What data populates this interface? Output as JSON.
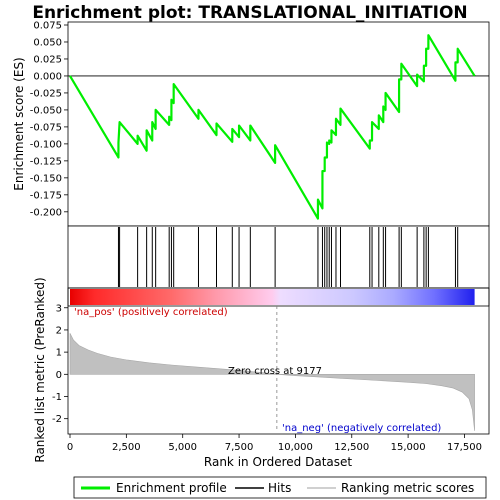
{
  "chart_data": {
    "type": "line",
    "title": "Enrichment plot: TRANSLATIONAL_INITIATION",
    "xlabel": "Rank in Ordered Dataset",
    "ylabel_top": "Enrichment score (ES)",
    "ylabel_bottom": "Ranked list metric (PreRanked)",
    "x_ticks": [
      0,
      2500,
      5000,
      7500,
      10000,
      12500,
      15000,
      17500
    ],
    "x_tick_labels": [
      "0",
      "2,500",
      "5,000",
      "7,500",
      "10,000",
      "12,500",
      "15,000",
      "17,500"
    ],
    "xlim": [
      0,
      18500
    ],
    "es_ylim": [
      -0.215,
      0.075
    ],
    "es_y_ticks": [
      0.075,
      0.05,
      0.025,
      0.0,
      -0.025,
      -0.05,
      -0.075,
      -0.1,
      -0.125,
      -0.15,
      -0.175,
      -0.2
    ],
    "es_y_tick_labels": [
      "0.075",
      "0.050",
      "0.025",
      "0.000",
      "-0.025",
      "-0.050",
      "-0.075",
      "-0.100",
      "-0.125",
      "-0.150",
      "-0.175",
      "-0.200"
    ],
    "metric_ylim": [
      -2.6,
      3.8
    ],
    "metric_y_ticks": [
      3,
      2,
      1,
      0,
      -1,
      -2
    ],
    "metric_y_tick_labels": [
      "3",
      "2",
      "1",
      "0",
      "-1",
      "-2"
    ],
    "hits": [
      2150,
      2200,
      3000,
      3400,
      3650,
      3800,
      4400,
      4500,
      4600,
      5700,
      6500,
      7200,
      7500,
      8000,
      9100,
      11000,
      11200,
      11300,
      11400,
      11500,
      11600,
      11800,
      12000,
      13300,
      13400,
      13700,
      13900,
      14000,
      14600,
      14700,
      15400,
      15700,
      15800,
      15900,
      17100,
      17200
    ],
    "es_curve": [
      [
        0,
        0.0
      ],
      [
        2149,
        -0.12
      ],
      [
        2150,
        -0.098
      ],
      [
        2200,
        -0.068
      ],
      [
        2999,
        -0.1
      ],
      [
        3000,
        -0.088
      ],
      [
        3399,
        -0.11
      ],
      [
        3400,
        -0.08
      ],
      [
        3649,
        -0.095
      ],
      [
        3650,
        -0.068
      ],
      [
        3799,
        -0.078
      ],
      [
        3800,
        -0.05
      ],
      [
        4399,
        -0.072
      ],
      [
        4400,
        -0.06
      ],
      [
        4499,
        -0.065
      ],
      [
        4500,
        -0.035
      ],
      [
        4599,
        -0.04
      ],
      [
        4600,
        -0.012
      ],
      [
        5699,
        -0.063
      ],
      [
        5700,
        -0.05
      ],
      [
        6499,
        -0.087
      ],
      [
        6500,
        -0.07
      ],
      [
        7199,
        -0.097
      ],
      [
        7200,
        -0.078
      ],
      [
        7499,
        -0.09
      ],
      [
        7500,
        -0.073
      ],
      [
        7999,
        -0.095
      ],
      [
        8000,
        -0.073
      ],
      [
        9099,
        -0.128
      ],
      [
        9100,
        -0.102
      ],
      [
        10999,
        -0.21
      ],
      [
        11000,
        -0.182
      ],
      [
        11199,
        -0.195
      ],
      [
        11200,
        -0.14
      ],
      [
        11299,
        -0.14
      ],
      [
        11300,
        -0.12
      ],
      [
        11399,
        -0.12
      ],
      [
        11400,
        -0.098
      ],
      [
        11499,
        -0.1
      ],
      [
        11500,
        -0.095
      ],
      [
        11599,
        -0.098
      ],
      [
        11600,
        -0.08
      ],
      [
        11799,
        -0.087
      ],
      [
        11800,
        -0.063
      ],
      [
        11999,
        -0.072
      ],
      [
        12000,
        -0.048
      ],
      [
        13299,
        -0.107
      ],
      [
        13300,
        -0.095
      ],
      [
        13399,
        -0.095
      ],
      [
        13400,
        -0.068
      ],
      [
        13699,
        -0.078
      ],
      [
        13700,
        -0.058
      ],
      [
        13899,
        -0.068
      ],
      [
        13900,
        -0.045
      ],
      [
        13999,
        -0.05
      ],
      [
        14000,
        -0.025
      ],
      [
        14599,
        -0.053
      ],
      [
        14600,
        -0.005
      ],
      [
        14699,
        -0.005
      ],
      [
        14700,
        0.018
      ],
      [
        15399,
        -0.015
      ],
      [
        15400,
        0.002
      ],
      [
        15699,
        -0.008
      ],
      [
        15700,
        0.015
      ],
      [
        15799,
        0.015
      ],
      [
        15800,
        0.04
      ],
      [
        15899,
        0.04
      ],
      [
        15900,
        0.06
      ],
      [
        17099,
        -0.007
      ],
      [
        17100,
        0.02
      ],
      [
        17199,
        0.02
      ],
      [
        17200,
        0.04
      ],
      [
        17950,
        0.0
      ]
    ],
    "metric_curve": [
      [
        0,
        1.85
      ],
      [
        150,
        1.55
      ],
      [
        400,
        1.3
      ],
      [
        800,
        1.1
      ],
      [
        1200,
        0.95
      ],
      [
        1800,
        0.78
      ],
      [
        2500,
        0.65
      ],
      [
        3500,
        0.52
      ],
      [
        4500,
        0.42
      ],
      [
        5500,
        0.34
      ],
      [
        6500,
        0.26
      ],
      [
        7500,
        0.18
      ],
      [
        8500,
        0.08
      ],
      [
        9177,
        0.0
      ],
      [
        10000,
        -0.06
      ],
      [
        11000,
        -0.12
      ],
      [
        12000,
        -0.18
      ],
      [
        13000,
        -0.24
      ],
      [
        14000,
        -0.3
      ],
      [
        15000,
        -0.36
      ],
      [
        15800,
        -0.42
      ],
      [
        16500,
        -0.52
      ],
      [
        17000,
        -0.62
      ],
      [
        17400,
        -0.8
      ],
      [
        17700,
        -1.1
      ],
      [
        17850,
        -1.6
      ],
      [
        17950,
        -2.55
      ]
    ],
    "zero_cross_label": "Zero cross at 9177",
    "zero_cross_x": 9177,
    "pos_label": "'na_pos' (positively correlated)",
    "neg_label": "'na_neg' (negatively correlated)",
    "legend": [
      "Enrichment profile",
      "Hits",
      "Ranking metric scores"
    ],
    "colors": {
      "es_line": "#00ee00",
      "hit": "#000000",
      "metric_fill": "#c0c0c0",
      "zero_line": "#808080",
      "pos_text": "#cc0000",
      "neg_text": "#0000cc"
    }
  }
}
